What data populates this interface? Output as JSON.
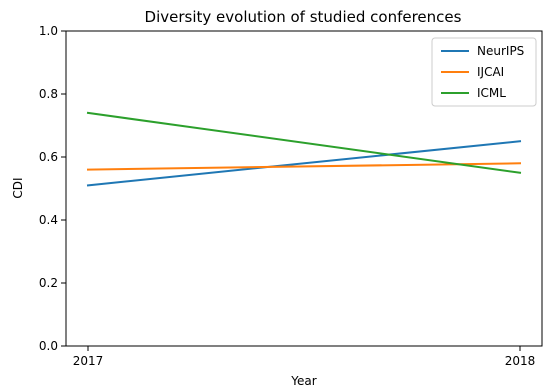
{
  "chart_data": {
    "type": "line",
    "title": "Diversity evolution of studied conferences",
    "xlabel": "Year",
    "ylabel": "CDI",
    "x": [
      "2017",
      "2018"
    ],
    "ylim": [
      0.0,
      1.0
    ],
    "yticks": [
      "0.0",
      "0.2",
      "0.4",
      "0.6",
      "0.8",
      "1.0"
    ],
    "grid": false,
    "legend_position": "top-right",
    "series": [
      {
        "name": "NeurIPS",
        "values": [
          0.51,
          0.65
        ],
        "color": "#1f77b4"
      },
      {
        "name": "IJCAI",
        "values": [
          0.56,
          0.58
        ],
        "color": "#ff7f0e"
      },
      {
        "name": "ICML",
        "values": [
          0.74,
          0.55
        ],
        "color": "#2ca02c"
      }
    ]
  }
}
